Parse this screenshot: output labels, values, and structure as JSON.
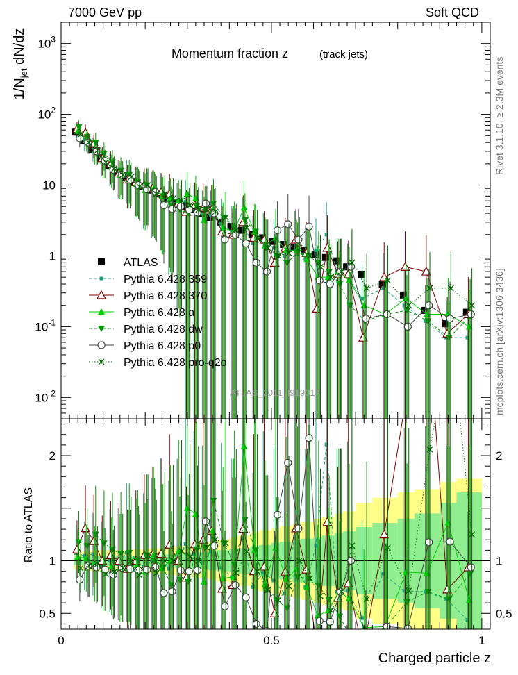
{
  "header": {
    "left": "7000 GeV pp",
    "right": "Soft QCD"
  },
  "side": {
    "top": "Rivet 3.1.10, ≥ 2.3M events",
    "bottom": "mcplots.cern.ch [arXiv:1306.3436]"
  },
  "watermark": "ATLAS_2011_I919017",
  "chart_data": [
    {
      "type": "scatter",
      "panel": "main",
      "title": "Momentum fraction z",
      "subtitle": "(track jets)",
      "ylabel": "1/N_jet dN/dz",
      "yscale": "log",
      "ylim": [
        0.005,
        2000
      ],
      "xlim": [
        0,
        1.02
      ],
      "yticks": [
        {
          "v": 0.01,
          "label": "10^-2"
        },
        {
          "v": 0.1,
          "label": "10^-1"
        },
        {
          "v": 1,
          "label": "1"
        },
        {
          "v": 10,
          "label": "10"
        },
        {
          "v": 100,
          "label": "10^2"
        },
        {
          "v": 1000,
          "label": "10^3"
        }
      ],
      "legend_position": "middle-left",
      "x": [
        0.04,
        0.06,
        0.08,
        0.1,
        0.12,
        0.14,
        0.16,
        0.18,
        0.2,
        0.22,
        0.24,
        0.26,
        0.28,
        0.3,
        0.32,
        0.34,
        0.36,
        0.385,
        0.41,
        0.435,
        0.46,
        0.485,
        0.51,
        0.535,
        0.56,
        0.585,
        0.61,
        0.635,
        0.66,
        0.685,
        0.72,
        0.77,
        0.82,
        0.87,
        0.92,
        0.97
      ],
      "series": [
        {
          "name": "ATLAS",
          "color": "#000000",
          "marker": "square",
          "line": "none",
          "values": [
            56,
            42,
            32,
            24,
            19,
            15,
            13,
            11,
            9.5,
            8.5,
            7.5,
            6.5,
            5.5,
            5.0,
            4.5,
            4.0,
            3.5,
            3.0,
            2.6,
            2.3,
            2.0,
            1.8,
            1.6,
            1.45,
            1.3,
            1.2,
            1.05,
            0.95,
            0.85,
            0.7,
            0.55,
            0.4,
            0.28,
            0.17,
            0.11,
            0.16
          ]
        },
        {
          "name": "Pythia 6.428 359",
          "color": "#1aa37a",
          "marker": "smallsquare",
          "line": "dashed",
          "values": [
            60,
            44,
            34,
            23,
            19,
            14.5,
            14,
            10,
            9,
            8.5,
            8,
            6,
            5.5,
            5.8,
            4.8,
            3.9,
            3.8,
            2.8,
            2.2,
            2.8,
            1.5,
            1.6,
            1.3,
            1.0,
            1.6,
            0.9,
            1.2,
            2.0,
            0.6,
            0.5,
            0.25,
            0.35,
            0.2,
            0.12,
            0.07,
            0.07
          ]
        },
        {
          "name": "Pythia 6.428 370",
          "color": "#800000",
          "marker": "opentriangle",
          "line": "solid",
          "values": [
            62,
            55,
            38,
            24,
            20,
            15,
            12,
            11,
            10,
            9,
            8,
            7.5,
            5.5,
            4.2,
            5.2,
            4.8,
            4.5,
            2.2,
            2.0,
            3.0,
            1.8,
            1.7,
            0.8,
            1.3,
            1.7,
            1.1,
            0.18,
            1.3,
            0.55,
            0.55,
            0.07,
            0.5,
            0.7,
            0.6,
            0.08,
            0.15
          ]
        },
        {
          "name": "Pythia 6.428 a",
          "color": "#00cc00",
          "marker": "triangle",
          "line": "solid",
          "values": [
            58,
            43,
            31,
            22,
            18,
            14,
            12,
            10.5,
            8.5,
            9,
            7,
            6.5,
            6,
            7.5,
            6.5,
            3.2,
            4.5,
            2.5,
            2.2,
            4.8,
            2.2,
            1.4,
            1.8,
            1.2,
            1.2,
            0.9,
            0.5,
            0.5,
            0.6,
            0.45,
            0.2,
            0.15,
            0.25,
            0.15,
            0.15,
            0.1
          ]
        },
        {
          "name": "Pythia 6.428 dw",
          "color": "#009900",
          "marker": "triangledown",
          "line": "dashed",
          "values": [
            66,
            48,
            40,
            28,
            21,
            16,
            14,
            11,
            10,
            8.5,
            7,
            5,
            4.5,
            4.0,
            5.0,
            4.5,
            5.5,
            3.5,
            2.5,
            3.2,
            2.2,
            1.3,
            1.0,
            0.8,
            1.1,
            1.0,
            0.8,
            0.6,
            0.4,
            0.2,
            0.12,
            0.15,
            0.17,
            0.12,
            0.07,
            0.14
          ]
        },
        {
          "name": "Pythia 6.428 p0",
          "color": "#444444",
          "marker": "opencircle",
          "line": "solid",
          "values": [
            46,
            40,
            30,
            22,
            16.5,
            14,
            12,
            10,
            8.7,
            8,
            5.2,
            4.6,
            5.0,
            4.5,
            4.1,
            5.5,
            4.0,
            1.7,
            2.0,
            1.5,
            0.8,
            0.6,
            2.3,
            2.8,
            1.7,
            2.6,
            0.45,
            0.4,
            0.6,
            0.7,
            0.13,
            0.15,
            0.1,
            0.2,
            0.13,
            0.15
          ]
        },
        {
          "name": "Pythia 6.428 pro-q2o",
          "color": "#006600",
          "marker": "star",
          "line": "dotted",
          "values": [
            52,
            40,
            31,
            21,
            17,
            14,
            13,
            9.5,
            10,
            7.5,
            7.5,
            6.5,
            6,
            5.2,
            4.5,
            4.5,
            4.2,
            3.5,
            2.3,
            2.5,
            1.8,
            1.3,
            1.0,
            1.1,
            1.3,
            1.0,
            0.7,
            0.5,
            0.6,
            0.8,
            0.35,
            0.45,
            0.2,
            0.35,
            0.35,
            0.2
          ]
        }
      ]
    },
    {
      "type": "scatter",
      "panel": "ratio",
      "ylabel": "Ratio to ATLAS",
      "xlabel": "Charged particle z",
      "ylim": [
        0.35,
        2.35
      ],
      "xlim": [
        0,
        1.02
      ],
      "yticks": [
        {
          "v": 0.5,
          "label": "0.5"
        },
        {
          "v": 1,
          "label": "1"
        },
        {
          "v": 2,
          "label": "2"
        }
      ],
      "xticks": [
        {
          "v": 0,
          "label": "0"
        },
        {
          "v": 0.5,
          "label": "0.5"
        },
        {
          "v": 1,
          "label": "1"
        }
      ],
      "reference_line": 1,
      "uncertainty_bands": {
        "x_edges": [
          0.03,
          0.05,
          0.07,
          0.09,
          0.11,
          0.13,
          0.15,
          0.17,
          0.19,
          0.21,
          0.23,
          0.25,
          0.27,
          0.29,
          0.31,
          0.33,
          0.35,
          0.37,
          0.4,
          0.42,
          0.45,
          0.47,
          0.5,
          0.52,
          0.55,
          0.57,
          0.6,
          0.62,
          0.65,
          0.67,
          0.7,
          0.74,
          0.8,
          0.84,
          0.9,
          0.94,
          1.0
        ],
        "stat_halfwidth": [
          0.04,
          0.04,
          0.05,
          0.05,
          0.05,
          0.05,
          0.05,
          0.05,
          0.05,
          0.06,
          0.06,
          0.06,
          0.07,
          0.07,
          0.08,
          0.08,
          0.09,
          0.1,
          0.11,
          0.12,
          0.14,
          0.15,
          0.17,
          0.18,
          0.2,
          0.21,
          0.22,
          0.24,
          0.26,
          0.28,
          0.32,
          0.36,
          0.4,
          0.45,
          0.55,
          0.65
        ],
        "total_halfwidth": [
          0.08,
          0.09,
          0.1,
          0.1,
          0.1,
          0.1,
          0.1,
          0.11,
          0.11,
          0.12,
          0.12,
          0.13,
          0.14,
          0.14,
          0.16,
          0.16,
          0.18,
          0.2,
          0.22,
          0.24,
          0.27,
          0.29,
          0.31,
          0.33,
          0.35,
          0.37,
          0.4,
          0.42,
          0.45,
          0.47,
          0.55,
          0.6,
          0.65,
          0.68,
          0.75,
          0.78
        ],
        "stat_color": "#90ee90",
        "total_color": "#ffff88"
      }
    }
  ]
}
